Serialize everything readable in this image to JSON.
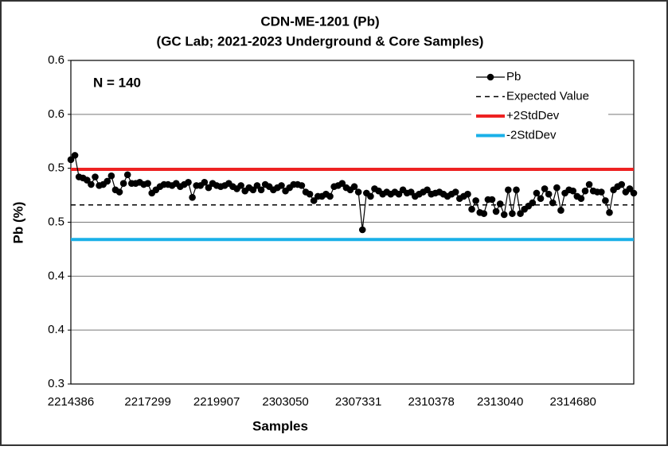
{
  "chart_data": {
    "type": "line",
    "title": "CDN-ME-1201 (Pb)",
    "subtitle": "(GC Lab; 2021-2023 Underground & Core Samples)",
    "x_label": "Samples",
    "y_label": "Pb (%)",
    "annotation": "N = 140",
    "legend": "upper right",
    "grid": true,
    "ylim": [
      0.3,
      0.6
    ],
    "yticks": [
      0.3,
      {
        "value": 0.35,
        "label": "0.4"
      },
      0.4,
      {
        "value": 0.45,
        "label": "0.5"
      },
      0.5,
      {
        "value": 0.55,
        "label": "0.6"
      },
      0.6
    ],
    "categories": [
      "2214386",
      null,
      null,
      null,
      null,
      null,
      null,
      null,
      null,
      null,
      null,
      null,
      null,
      null,
      null,
      null,
      null,
      null,
      null,
      "2217299",
      null,
      null,
      null,
      null,
      null,
      null,
      null,
      null,
      null,
      null,
      null,
      null,
      null,
      null,
      null,
      null,
      "2219907",
      null,
      null,
      null,
      null,
      null,
      null,
      null,
      null,
      null,
      null,
      null,
      null,
      null,
      null,
      null,
      null,
      "2303050",
      null,
      null,
      null,
      null,
      null,
      null,
      null,
      null,
      null,
      null,
      null,
      null,
      null,
      null,
      null,
      null,
      null,
      "2307331",
      null,
      null,
      null,
      null,
      null,
      null,
      null,
      null,
      null,
      null,
      null,
      null,
      null,
      null,
      null,
      null,
      null,
      "2310378",
      null,
      null,
      null,
      null,
      null,
      null,
      null,
      null,
      null,
      null,
      null,
      null,
      null,
      null,
      null,
      null,
      "2313040",
      null,
      null,
      null,
      null,
      null,
      null,
      null,
      null,
      null,
      null,
      null,
      null,
      null,
      null,
      null,
      null,
      null,
      "2314680",
      null,
      null,
      null,
      null,
      null,
      null,
      null,
      null,
      null,
      null,
      null,
      null,
      null,
      null,
      null
    ],
    "series": [
      {
        "name": "Pb",
        "color": "#000000",
        "values": [
          0.508,
          0.512,
          0.492,
          0.491,
          0.489,
          0.485,
          0.492,
          0.484,
          0.485,
          0.488,
          0.493,
          0.48,
          0.478,
          0.486,
          0.494,
          0.486,
          0.486,
          0.487,
          0.485,
          0.486,
          0.477,
          0.48,
          0.483,
          0.485,
          0.485,
          0.484,
          0.486,
          0.483,
          0.485,
          0.487,
          0.473,
          0.484,
          0.484,
          0.487,
          0.482,
          0.486,
          0.484,
          0.483,
          0.484,
          0.486,
          0.483,
          0.481,
          0.484,
          0.479,
          0.482,
          0.48,
          0.484,
          0.48,
          0.485,
          0.483,
          0.48,
          0.482,
          0.484,
          0.479,
          0.482,
          0.485,
          0.485,
          0.484,
          0.478,
          0.476,
          0.47,
          0.474,
          0.474,
          0.476,
          0.474,
          0.483,
          0.484,
          0.486,
          0.482,
          0.48,
          0.483,
          0.478,
          0.443,
          0.477,
          0.474,
          0.481,
          0.479,
          0.476,
          0.478,
          0.476,
          0.478,
          0.476,
          0.48,
          0.477,
          0.478,
          0.474,
          0.476,
          0.478,
          0.48,
          0.476,
          0.477,
          0.478,
          0.476,
          0.474,
          0.476,
          0.478,
          0.472,
          0.474,
          0.476,
          0.462,
          0.47,
          0.459,
          0.458,
          0.471,
          0.471,
          0.46,
          0.467,
          0.457,
          0.48,
          0.458,
          0.48,
          0.458,
          0.462,
          0.465,
          0.468,
          0.477,
          0.472,
          0.481,
          0.476,
          0.468,
          0.482,
          0.461,
          0.477,
          0.48,
          0.479,
          0.474,
          0.472,
          0.479,
          0.485,
          0.479,
          0.478,
          0.478,
          0.47,
          0.459,
          0.48,
          0.483,
          0.485,
          0.478,
          0.481,
          0.477
        ]
      }
    ],
    "reference_lines": [
      {
        "name": "Expected Value",
        "value": 0.466,
        "color": "#000000",
        "dashed": true
      },
      {
        "name": "+2StdDev",
        "value": 0.499,
        "color": "#ee2222",
        "dashed": false
      },
      {
        "name": "-2StdDev",
        "value": 0.434,
        "color": "#1ab0e8",
        "dashed": false
      }
    ]
  }
}
